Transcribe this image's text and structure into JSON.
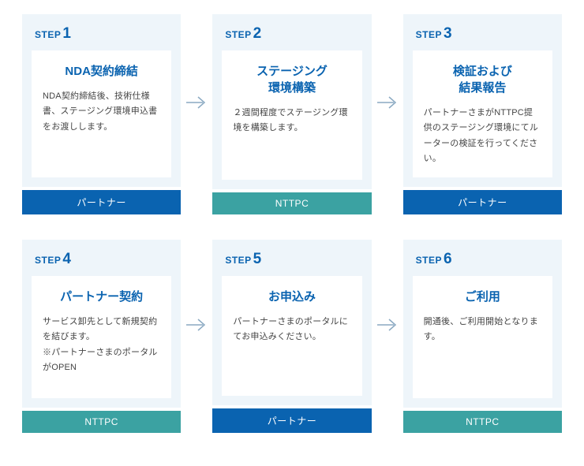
{
  "colors": {
    "step_bg": "#eef5fa",
    "card_bg": "#ffffff",
    "accent_blue": "#0a63b0",
    "accent_teal": "#3ba2a2",
    "text_body": "#444444",
    "arrow": "#8aa9c2"
  },
  "badge_types": {
    "partner": {
      "label": "パートナー",
      "bg": "#0a63b0"
    },
    "nttpc": {
      "label": "NTTPC",
      "bg": "#3ba2a2"
    }
  },
  "steps": [
    {
      "step_prefix": "STEP",
      "step_num": "1",
      "title": "NDA契約締結",
      "body": "NDA契約締結後、技術仕様書、ステージング環境申込書をお渡しします。",
      "badge": "partner"
    },
    {
      "step_prefix": "STEP",
      "step_num": "2",
      "title": "ステージング\n環境構築",
      "body": "２週間程度でステージング環境を構築します。",
      "badge": "nttpc"
    },
    {
      "step_prefix": "STEP",
      "step_num": "3",
      "title": "検証および\n結果報告",
      "body": "パートナーさまがNTTPC提供のステージング環境にてルーターの検証を行ってください。",
      "badge": "partner"
    },
    {
      "step_prefix": "STEP",
      "step_num": "4",
      "title": "パートナー契約",
      "body": "サービス卸先として新規契約を結びます。\n※パートナーさまのポータルがOPEN",
      "badge": "nttpc"
    },
    {
      "step_prefix": "STEP",
      "step_num": "5",
      "title": "お申込み",
      "body": "パートナーさまのポータルにてお申込みください。",
      "badge": "partner"
    },
    {
      "step_prefix": "STEP",
      "step_num": "6",
      "title": "ご利用",
      "body": "開通後、ご利用開始となります。",
      "badge": "nttpc"
    }
  ]
}
